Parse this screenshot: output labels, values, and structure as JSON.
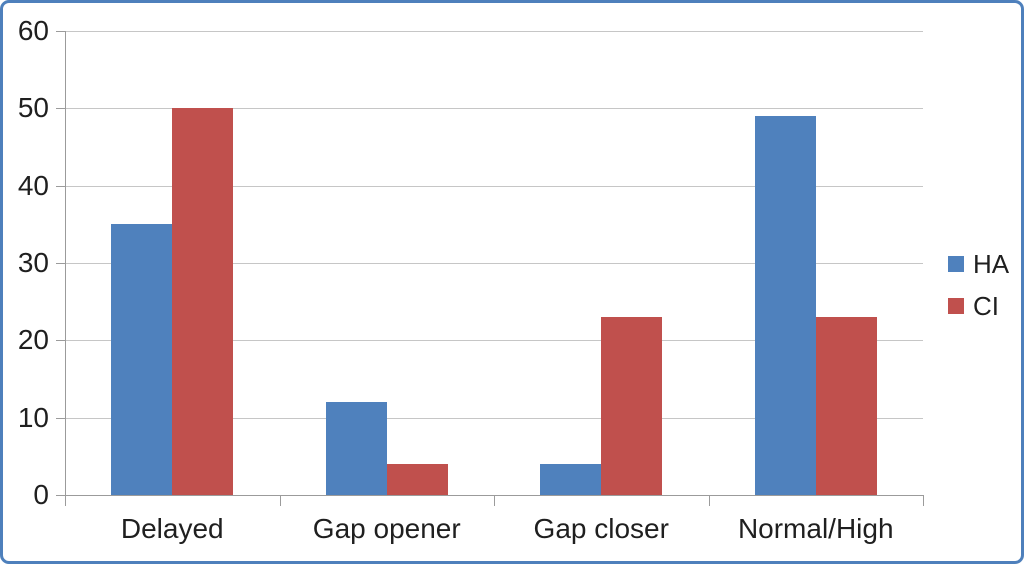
{
  "chart_data": {
    "type": "bar",
    "title": "",
    "xlabel": "",
    "ylabel": "",
    "categories": [
      "Delayed",
      "Gap opener",
      "Gap closer",
      "Normal/High"
    ],
    "series": [
      {
        "name": "HA",
        "color": "#4f81bd",
        "values": [
          35,
          12,
          4,
          49
        ]
      },
      {
        "name": "CI",
        "color": "#c0504d",
        "values": [
          50,
          4,
          23,
          23
        ]
      }
    ],
    "ylim": [
      0,
      60
    ],
    "ytick_step": 10,
    "ytick_labels": [
      "0",
      "10",
      "20",
      "30",
      "40",
      "50",
      "60"
    ],
    "grid": "horizontal-only",
    "legend_position": "right"
  },
  "colors": {
    "frame_border": "#4e80bc",
    "gridline": "#c6c6c6",
    "axis": "#9b9b9b",
    "text": "#1f1f1f",
    "background": "#ffffff"
  }
}
